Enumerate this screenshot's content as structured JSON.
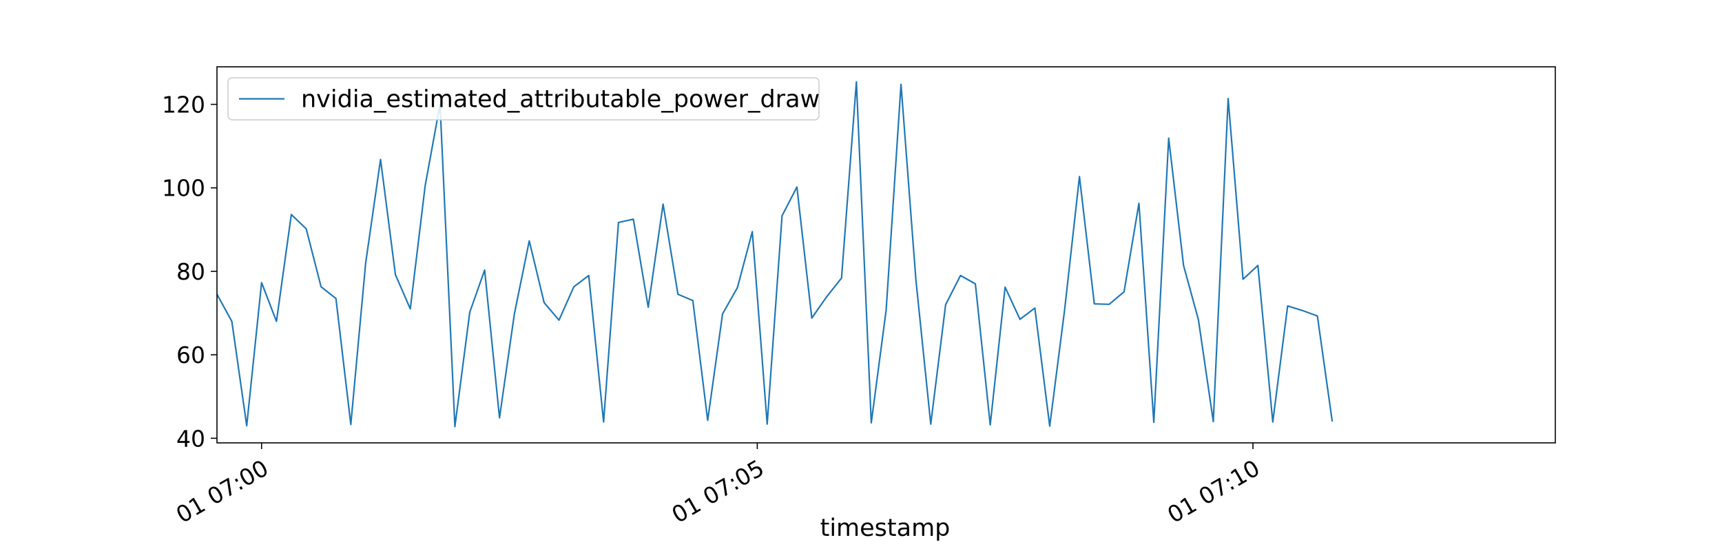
{
  "chart_data": {
    "type": "line",
    "title": "",
    "xlabel": "timestamp",
    "ylabel": "",
    "x_start": "2024-01-01T06:59:33",
    "x_step_seconds": 9,
    "xlim": [
      "2024-01-01T06:59:33",
      "2024-01-01T07:13:03"
    ],
    "ylim": [
      38.9,
      129.0
    ],
    "yticks": [
      40,
      60,
      80,
      100,
      120
    ],
    "xticks": [
      {
        "time": "2024-01-01T07:00:00",
        "label": "01 07:00"
      },
      {
        "time": "2024-01-01T07:05:00",
        "label": "01 07:05"
      },
      {
        "time": "2024-01-01T07:10:00",
        "label": "01 07:10"
      }
    ],
    "legend_position": "upper-left",
    "grid": false,
    "series": [
      {
        "name": "nvidia_estimated_attributable_power_draw",
        "color": "#1f77b4",
        "values": [
          74.5,
          68,
          43,
          77.3,
          68,
          93.6,
          90.2,
          76.3,
          73.5,
          43.3,
          82,
          106.8,
          79.2,
          71,
          100.5,
          120,
          42.8,
          70.2,
          80.3,
          44.9,
          69.8,
          87.3,
          72.5,
          68.3,
          76.3,
          79,
          43.9,
          91.7,
          92.5,
          71.4,
          96.1,
          74.5,
          73,
          44.3,
          69.8,
          76.1,
          89.5,
          43.4,
          93.3,
          100.2,
          68.8,
          73.9,
          78.4,
          125.4,
          43.7,
          70.7,
          124.8,
          78,
          43.4,
          72,
          79,
          77,
          43.2,
          76.2,
          68.5,
          71.2,
          42.9,
          70.7,
          102.7,
          72.2,
          72.1,
          75.1,
          96.3,
          43.8,
          111.9,
          81.4,
          68.4,
          44,
          121.4,
          78.1,
          81.4,
          43.9,
          71.7,
          70.6,
          69.3,
          44
        ]
      }
    ]
  }
}
